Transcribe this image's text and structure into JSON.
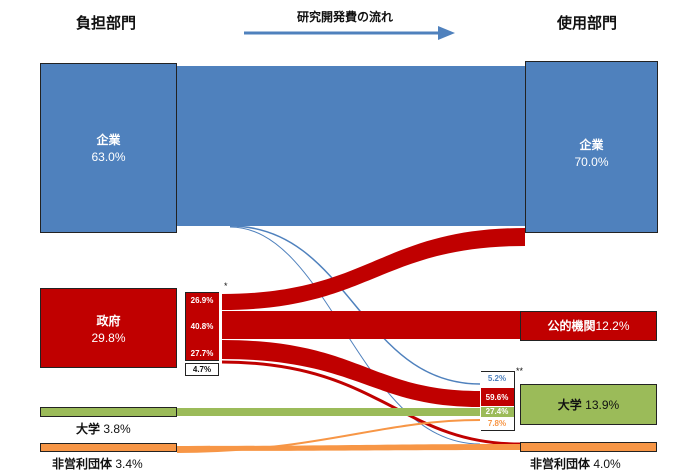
{
  "headings": {
    "source": "負担部門",
    "flow": "研究開発費の流れ",
    "destination": "使用部門"
  },
  "sources": {
    "company": {
      "name": "企業",
      "pct": "63.0%",
      "color": "#4f81bd"
    },
    "government": {
      "name": "政府",
      "pct": "29.8%",
      "color": "#c00000"
    },
    "university": {
      "name": "大学",
      "pct": "3.8%",
      "color": "#9bbb59"
    },
    "nonprofit": {
      "name": "非営利団体",
      "pct": "3.4%",
      "color": "#f79646"
    }
  },
  "destinations": {
    "company": {
      "name": "企業",
      "pct": "70.0%",
      "color": "#4f81bd"
    },
    "public": {
      "name": "公的機関",
      "pct": "12.2%",
      "color": "#c00000"
    },
    "university": {
      "name": "大学",
      "pct": "13.9%",
      "color": "#9bbb59"
    },
    "nonprofit": {
      "name": "非営利団体",
      "pct": "4.0%",
      "color": "#f79646"
    }
  },
  "government_breakdown": {
    "mark": "*",
    "items": [
      "26.9%",
      "40.8%",
      "27.7%",
      "4.7%"
    ]
  },
  "university_breakdown": {
    "mark": "**",
    "items": [
      "5.2%",
      "59.6%",
      "27.4%",
      "7.8%"
    ]
  }
}
